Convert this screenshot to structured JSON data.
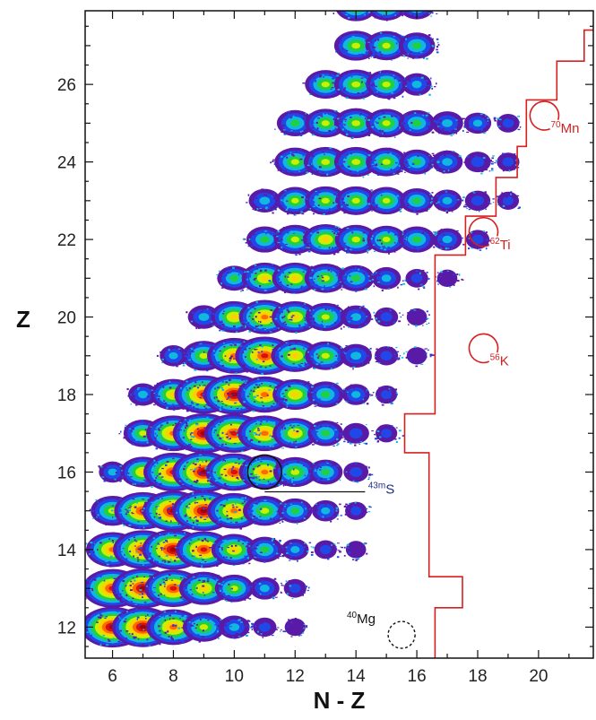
{
  "chart_data": {
    "type": "heatmap",
    "title": "",
    "xlabel": "N - Z",
    "ylabel": "Z",
    "xlim": [
      5.1,
      21.8
    ],
    "ylim": [
      11.2,
      27.9
    ],
    "x_ticks": [
      6,
      8,
      10,
      12,
      14,
      16,
      18,
      20
    ],
    "y_ticks": [
      12,
      14,
      16,
      18,
      20,
      22,
      24,
      26
    ],
    "grid": false,
    "colormap": [
      "#5a1aa8",
      "#2048e8",
      "#10b8e0",
      "#20d040",
      "#c8f000",
      "#ffd000",
      "#ff6a00",
      "#d81010",
      "#a80000"
    ],
    "boundary_color": "#d62020",
    "boundary_line": [
      [
        21.8,
        27.4
      ],
      [
        21.5,
        27.4
      ],
      [
        21.5,
        26.6
      ],
      [
        20.6,
        26.6
      ],
      [
        20.6,
        25.6
      ],
      [
        19.6,
        25.6
      ],
      [
        19.6,
        24.4
      ],
      [
        19.3,
        24.4
      ],
      [
        19.3,
        23.6
      ],
      [
        18.6,
        23.6
      ],
      [
        18.6,
        22.6
      ],
      [
        17.6,
        22.6
      ],
      [
        17.6,
        21.6
      ],
      [
        16.6,
        21.6
      ],
      [
        16.6,
        17.5
      ],
      [
        15.6,
        17.5
      ],
      [
        15.6,
        16.5
      ],
      [
        16.4,
        16.5
      ],
      [
        16.4,
        13.3
      ],
      [
        17.5,
        13.3
      ],
      [
        17.5,
        12.5
      ],
      [
        16.6,
        12.5
      ],
      [
        16.6,
        11.2
      ]
    ],
    "grid_points": [
      {
        "z": 12,
        "n_z": [
          6,
          7,
          8,
          9,
          10,
          11,
          12
        ],
        "intensity": [
          0.98,
          0.95,
          0.78,
          0.52,
          0.28,
          0.12,
          0.06
        ]
      },
      {
        "z": 13,
        "n_z": [
          6,
          7,
          8,
          9,
          10,
          11,
          12
        ],
        "intensity": [
          0.9,
          0.95,
          0.85,
          0.68,
          0.45,
          0.25,
          0.1
        ]
      },
      {
        "z": 14,
        "n_z": [
          6,
          7,
          8,
          9,
          10,
          11,
          12,
          13,
          14
        ],
        "intensity": [
          0.75,
          0.9,
          0.96,
          0.82,
          0.6,
          0.38,
          0.2,
          0.1,
          0.05
        ]
      },
      {
        "z": 15,
        "n_z": [
          6,
          7,
          8,
          9,
          10,
          11,
          12,
          13,
          14
        ],
        "intensity": [
          0.55,
          0.85,
          0.95,
          0.97,
          0.78,
          0.55,
          0.35,
          0.2,
          0.08
        ]
      },
      {
        "z": 16,
        "n_z": [
          6,
          7,
          8,
          9,
          10,
          11,
          12,
          13,
          14
        ],
        "intensity": [
          0.2,
          0.58,
          0.9,
          0.97,
          0.85,
          0.72,
          0.55,
          0.35,
          0.15
        ]
      },
      {
        "z": 17,
        "n_z": [
          7,
          8,
          9,
          10,
          11,
          12,
          13,
          14,
          15
        ],
        "intensity": [
          0.45,
          0.78,
          0.95,
          0.9,
          0.78,
          0.58,
          0.38,
          0.18,
          0.08
        ]
      },
      {
        "z": 18,
        "n_z": [
          7,
          8,
          9,
          10,
          11,
          12,
          13,
          14,
          15
        ],
        "intensity": [
          0.25,
          0.6,
          0.88,
          0.95,
          0.8,
          0.58,
          0.4,
          0.2,
          0.08
        ]
      },
      {
        "z": 19,
        "n_z": [
          8,
          9,
          10,
          11,
          12,
          13,
          14,
          15,
          16
        ],
        "intensity": [
          0.2,
          0.55,
          0.78,
          0.88,
          0.65,
          0.5,
          0.3,
          0.12,
          0.05
        ]
      },
      {
        "z": 20,
        "n_z": [
          9,
          10,
          11,
          12,
          13,
          14,
          15,
          16
        ],
        "intensity": [
          0.3,
          0.62,
          0.72,
          0.62,
          0.48,
          0.28,
          0.12,
          0.05
        ]
      },
      {
        "z": 21,
        "n_z": [
          10,
          11,
          12,
          13,
          14,
          15,
          16,
          17
        ],
        "intensity": [
          0.35,
          0.6,
          0.6,
          0.52,
          0.4,
          0.24,
          0.1,
          0.05
        ]
      },
      {
        "z": 22,
        "n_z": [
          11,
          12,
          13,
          14,
          15,
          16,
          17,
          18
        ],
        "intensity": [
          0.4,
          0.52,
          0.58,
          0.52,
          0.45,
          0.4,
          0.25,
          0.12
        ]
      },
      {
        "z": 23,
        "n_z": [
          11,
          12,
          13,
          14,
          15,
          16,
          17,
          18,
          19
        ],
        "intensity": [
          0.3,
          0.45,
          0.5,
          0.5,
          0.45,
          0.35,
          0.24,
          0.16,
          0.08
        ]
      },
      {
        "z": 24,
        "n_z": [
          12,
          13,
          14,
          15,
          16,
          17,
          18,
          19
        ],
        "intensity": [
          0.5,
          0.55,
          0.55,
          0.5,
          0.35,
          0.28,
          0.18,
          0.1
        ]
      },
      {
        "z": 25,
        "n_z": [
          12,
          13,
          14,
          15,
          16,
          17,
          18,
          19
        ],
        "intensity": [
          0.4,
          0.5,
          0.55,
          0.5,
          0.4,
          0.3,
          0.2,
          0.1
        ]
      },
      {
        "z": 26,
        "n_z": [
          13,
          14,
          15,
          16
        ],
        "intensity": [
          0.5,
          0.55,
          0.5,
          0.25
        ]
      },
      {
        "z": 27,
        "n_z": [
          14,
          15,
          16
        ],
        "intensity": [
          0.55,
          0.52,
          0.4
        ]
      },
      {
        "z": 28,
        "n_z": [
          14,
          15,
          16
        ],
        "intensity": [
          0.5,
          0.45,
          0.35
        ]
      }
    ],
    "annotations": [
      {
        "id": "s43m",
        "mass": "43m",
        "symbol": "S",
        "color": "#1f2e8c",
        "n_z": 11,
        "z": 16,
        "marker": "solid-circle",
        "label_x": 14.4,
        "label_y": 15.45
      },
      {
        "id": "mn70",
        "mass": "70",
        "symbol": "Mn",
        "color": "#d62020",
        "n_z": 20.2,
        "z": 25.2,
        "marker": "open-circle",
        "label_x": 20.4,
        "label_y": 24.75
      },
      {
        "id": "ti62",
        "mass": "62",
        "symbol": "Ti",
        "color": "#d62020",
        "n_z": 18.2,
        "z": 22.2,
        "marker": "open-circle",
        "label_x": 18.4,
        "label_y": 21.75
      },
      {
        "id": "k56",
        "mass": "56",
        "symbol": "K",
        "color": "#d62020",
        "n_z": 18.2,
        "z": 19.2,
        "marker": "open-circle",
        "label_x": 18.4,
        "label_y": 18.75
      },
      {
        "id": "mg40",
        "mass": "40",
        "symbol": "Mg",
        "color": "#111111",
        "n_z": 15.5,
        "z": 11.8,
        "marker": "dashed-circle",
        "label_x": 13.7,
        "label_y": 12.1
      }
    ]
  }
}
